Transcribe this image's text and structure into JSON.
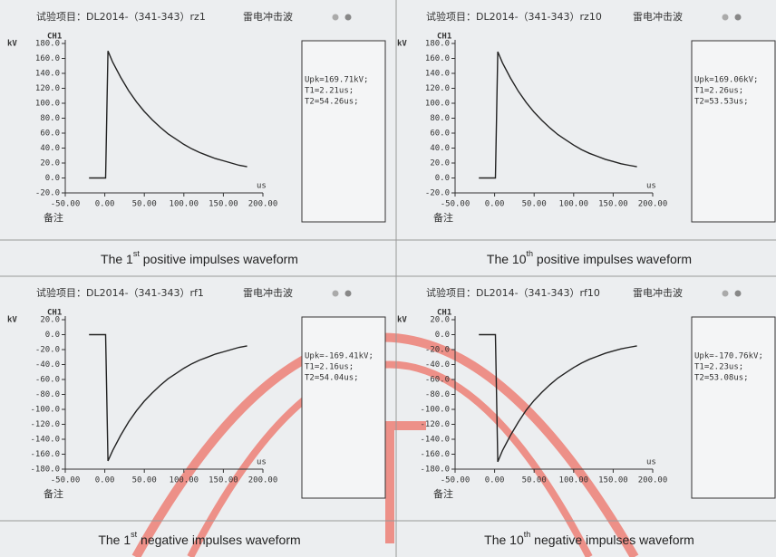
{
  "chart_data": [
    {
      "type": "line",
      "title": "试验项目：DL2014-（341-343）rz1",
      "subtitle": "雷电冲击波",
      "channel": "CH1",
      "y_label": "kV",
      "x_label": "us",
      "remark": "备注",
      "readout": [
        "Upk=169.71kV;",
        "T1=2.21us;",
        "T2=54.26us;"
      ],
      "x": [
        -20,
        -1,
        1,
        4,
        10,
        20,
        30,
        40,
        50,
        60,
        70,
        80,
        90,
        100,
        110,
        120,
        130,
        140,
        150,
        160,
        170,
        180
      ],
      "values": [
        0,
        0,
        0,
        170,
        155,
        135,
        117,
        102,
        89,
        78,
        68,
        59,
        52,
        45,
        39,
        34,
        30,
        26,
        23,
        20,
        17,
        15
      ],
      "color": "#222222",
      "xlim": [
        -50,
        200
      ],
      "ylim": [
        -20,
        180
      ],
      "xticks": [
        {
          "value": -50,
          "label": "-50.00"
        },
        {
          "value": 0,
          "label": "0.00"
        },
        {
          "value": 50,
          "label": "50.00"
        },
        {
          "value": 100,
          "label": "100.00"
        },
        {
          "value": 150,
          "label": "150.00"
        },
        {
          "value": 200,
          "label": "200.00"
        }
      ],
      "yticks": [
        {
          "value": 180,
          "label": "180.0"
        },
        {
          "value": 160,
          "label": "160.0"
        },
        {
          "value": 140,
          "label": "140.0"
        },
        {
          "value": 120,
          "label": "120.0"
        },
        {
          "value": 100,
          "label": "100.0"
        },
        {
          "value": 80,
          "label": "80.0"
        },
        {
          "value": 60,
          "label": "60.0"
        },
        {
          "value": 40,
          "label": "40.0"
        },
        {
          "value": 20,
          "label": "20.0"
        },
        {
          "value": 0,
          "label": "0.0"
        },
        {
          "value": -20,
          "label": "-20.0"
        }
      ]
    },
    {
      "type": "line",
      "title": "试验项目：DL2014-（341-343）rz10",
      "subtitle": "雷电冲击波",
      "channel": "CH1",
      "y_label": "kV",
      "x_label": "us",
      "remark": "备注",
      "readout": [
        "Upk=169.06kV;",
        "T1=2.26us;",
        "T2=53.53us;"
      ],
      "x": [
        -20,
        -1,
        1,
        4,
        10,
        20,
        30,
        40,
        50,
        60,
        70,
        80,
        90,
        100,
        110,
        120,
        130,
        140,
        150,
        160,
        170,
        180
      ],
      "values": [
        0,
        0,
        0,
        169,
        154,
        134,
        116,
        101,
        88,
        77,
        67,
        58,
        51,
        44,
        38,
        33,
        29,
        25,
        22,
        19,
        17,
        15
      ],
      "color": "#222222",
      "xlim": [
        -50,
        200
      ],
      "ylim": [
        -20,
        180
      ],
      "xticks": [
        {
          "value": -50,
          "label": "-50.00"
        },
        {
          "value": 0,
          "label": "0.00"
        },
        {
          "value": 50,
          "label": "50.00"
        },
        {
          "value": 100,
          "label": "100.00"
        },
        {
          "value": 150,
          "label": "150.00"
        },
        {
          "value": 200,
          "label": "200.00"
        }
      ],
      "yticks": [
        {
          "value": 180,
          "label": "180.0"
        },
        {
          "value": 160,
          "label": "160.0"
        },
        {
          "value": 140,
          "label": "140.0"
        },
        {
          "value": 120,
          "label": "120.0"
        },
        {
          "value": 100,
          "label": "100.0"
        },
        {
          "value": 80,
          "label": "80.0"
        },
        {
          "value": 60,
          "label": "60.0"
        },
        {
          "value": 40,
          "label": "40.0"
        },
        {
          "value": 20,
          "label": "20.0"
        },
        {
          "value": 0,
          "label": "0.0"
        },
        {
          "value": -20,
          "label": "-20.0"
        }
      ]
    },
    {
      "type": "line",
      "title": "试验项目：DL2014-（341-343）rf1",
      "subtitle": "雷电冲击波",
      "channel": "CH1",
      "y_label": "kV",
      "x_label": "us",
      "remark": "备注",
      "readout": [
        "Upk=-169.41kV;",
        "T1=2.16us;",
        "T2=54.04us;"
      ],
      "x": [
        -20,
        -1,
        1,
        4,
        10,
        20,
        30,
        40,
        50,
        60,
        70,
        80,
        90,
        100,
        110,
        120,
        130,
        140,
        150,
        160,
        170,
        180
      ],
      "values": [
        0,
        0,
        0,
        -169,
        -155,
        -135,
        -117,
        -102,
        -89,
        -78,
        -68,
        -59,
        -52,
        -45,
        -39,
        -34,
        -30,
        -26,
        -23,
        -20,
        -17,
        -15
      ],
      "color": "#222222",
      "xlim": [
        -50,
        200
      ],
      "ylim": [
        -180,
        20
      ],
      "xticks": [
        {
          "value": -50,
          "label": "-50.00"
        },
        {
          "value": 0,
          "label": "0.00"
        },
        {
          "value": 50,
          "label": "50.00"
        },
        {
          "value": 100,
          "label": "100.00"
        },
        {
          "value": 150,
          "label": "150.00"
        },
        {
          "value": 200,
          "label": "200.00"
        }
      ],
      "yticks": [
        {
          "value": 20,
          "label": "20.0"
        },
        {
          "value": 0,
          "label": "0.0"
        },
        {
          "value": -20,
          "label": "-20.0"
        },
        {
          "value": -40,
          "label": "-40.0"
        },
        {
          "value": -60,
          "label": "-60.0"
        },
        {
          "value": -80,
          "label": "-80.0"
        },
        {
          "value": -100,
          "label": "-100.0"
        },
        {
          "value": -120,
          "label": "-120.0"
        },
        {
          "value": -140,
          "label": "-140.0"
        },
        {
          "value": -160,
          "label": "-160.0"
        },
        {
          "value": -180,
          "label": "-180.0"
        }
      ]
    },
    {
      "type": "line",
      "title": "试验项目：DL2014-（341-343）rf10",
      "subtitle": "雷电冲击波",
      "channel": "CH1",
      "y_label": "kV",
      "x_label": "us",
      "remark": "备注",
      "readout": [
        "Upk=-170.76kV;",
        "T1=2.23us;",
        "T2=53.08us;"
      ],
      "x": [
        -20,
        -1,
        1,
        4,
        10,
        20,
        30,
        40,
        50,
        60,
        70,
        80,
        90,
        100,
        110,
        120,
        130,
        140,
        150,
        160,
        170,
        180
      ],
      "values": [
        0,
        0,
        0,
        -170,
        -155,
        -135,
        -117,
        -101,
        -88,
        -77,
        -67,
        -58,
        -51,
        -44,
        -38,
        -33,
        -29,
        -25,
        -22,
        -19,
        -17,
        -15
      ],
      "color": "#222222",
      "xlim": [
        -50,
        200
      ],
      "ylim": [
        -180,
        20
      ],
      "xticks": [
        {
          "value": -50,
          "label": "-50.00"
        },
        {
          "value": 0,
          "label": "0.00"
        },
        {
          "value": 50,
          "label": "50.00"
        },
        {
          "value": 100,
          "label": "100.00"
        },
        {
          "value": 150,
          "label": "150.00"
        },
        {
          "value": 200,
          "label": "200.00"
        }
      ],
      "yticks": [
        {
          "value": 20,
          "label": "20.0"
        },
        {
          "value": 0,
          "label": "0.0"
        },
        {
          "value": -20,
          "label": "-20.0"
        },
        {
          "value": -40,
          "label": "-40.0"
        },
        {
          "value": -60,
          "label": "-60.0"
        },
        {
          "value": -80,
          "label": "-80.0"
        },
        {
          "value": -100,
          "label": "-100.0"
        },
        {
          "value": -120,
          "label": "-120.0"
        },
        {
          "value": -140,
          "label": "-140.0"
        },
        {
          "value": -160,
          "label": "-160.0"
        },
        {
          "value": -180,
          "label": "-180.0"
        }
      ]
    }
  ],
  "captions": [
    {
      "text": "The 1",
      "sup": "st",
      "rest": " positive impulses waveform"
    },
    {
      "text": "The 10",
      "sup": "th",
      "rest": " positive impulses waveform"
    },
    {
      "text": "The 1",
      "sup": "st",
      "rest": " negative impulses waveform"
    },
    {
      "text": "The 10",
      "sup": "th",
      "rest": " negative impulses waveform"
    }
  ]
}
